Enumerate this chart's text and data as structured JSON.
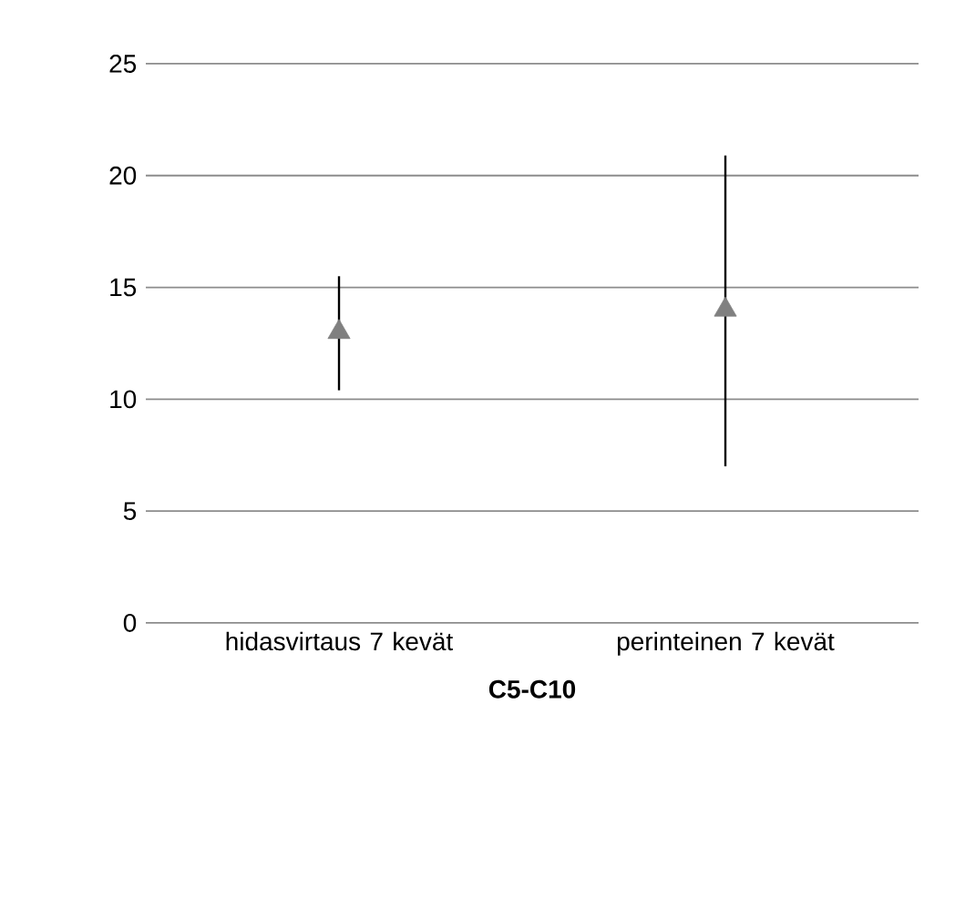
{
  "chart_data": {
    "type": "scatter",
    "xlabel": "**C5-C10**",
    "categories": [
      "hidasvirtaus 7 kevät",
      "perinteinen 7 kevät"
    ],
    "values": [
      13,
      14
    ],
    "color": "#808080",
    "marker": "triangle",
    "errors": [
      [
        10.4,
        15.5
      ],
      [
        7.0,
        20.9
      ]
    ],
    "ylim": [
      0,
      25
    ],
    "yticks": [
      0,
      5,
      10,
      15,
      20,
      25
    ],
    "grid": "y"
  }
}
